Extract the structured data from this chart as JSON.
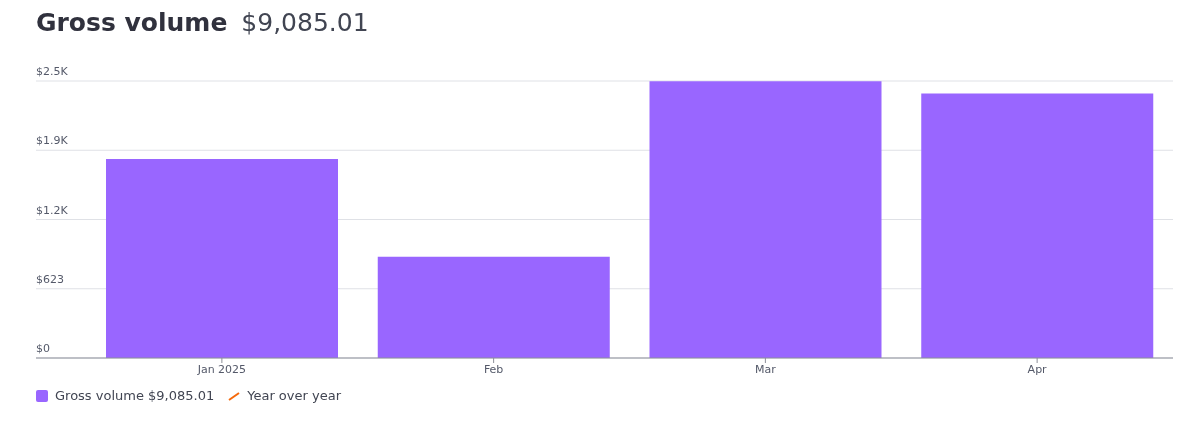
{
  "chart_data": {
    "type": "bar",
    "title": "Gross volume",
    "subtitle": "$9,085.01",
    "categories": [
      "Jan 2025",
      "Feb",
      "Mar",
      "Apr"
    ],
    "series": [
      {
        "name": "Gross volume $9,085.01",
        "color": "#9966ff",
        "values": [
          1790,
          910,
          2490,
          2380
        ]
      },
      {
        "name": "Year over year",
        "type": "line",
        "color": "#f5690b",
        "values": [
          null,
          null,
          null,
          null
        ]
      }
    ],
    "ylim": [
      0,
      2492
    ],
    "yticks": [
      {
        "value": 0,
        "label": "$0"
      },
      {
        "value": 623,
        "label": "$623"
      },
      {
        "value": 1246,
        "label": "$1.2K"
      },
      {
        "value": 1869,
        "label": "$1.9K"
      },
      {
        "value": 2492,
        "label": "$2.5K"
      }
    ],
    "grid": "y",
    "legend": "bottom left"
  }
}
